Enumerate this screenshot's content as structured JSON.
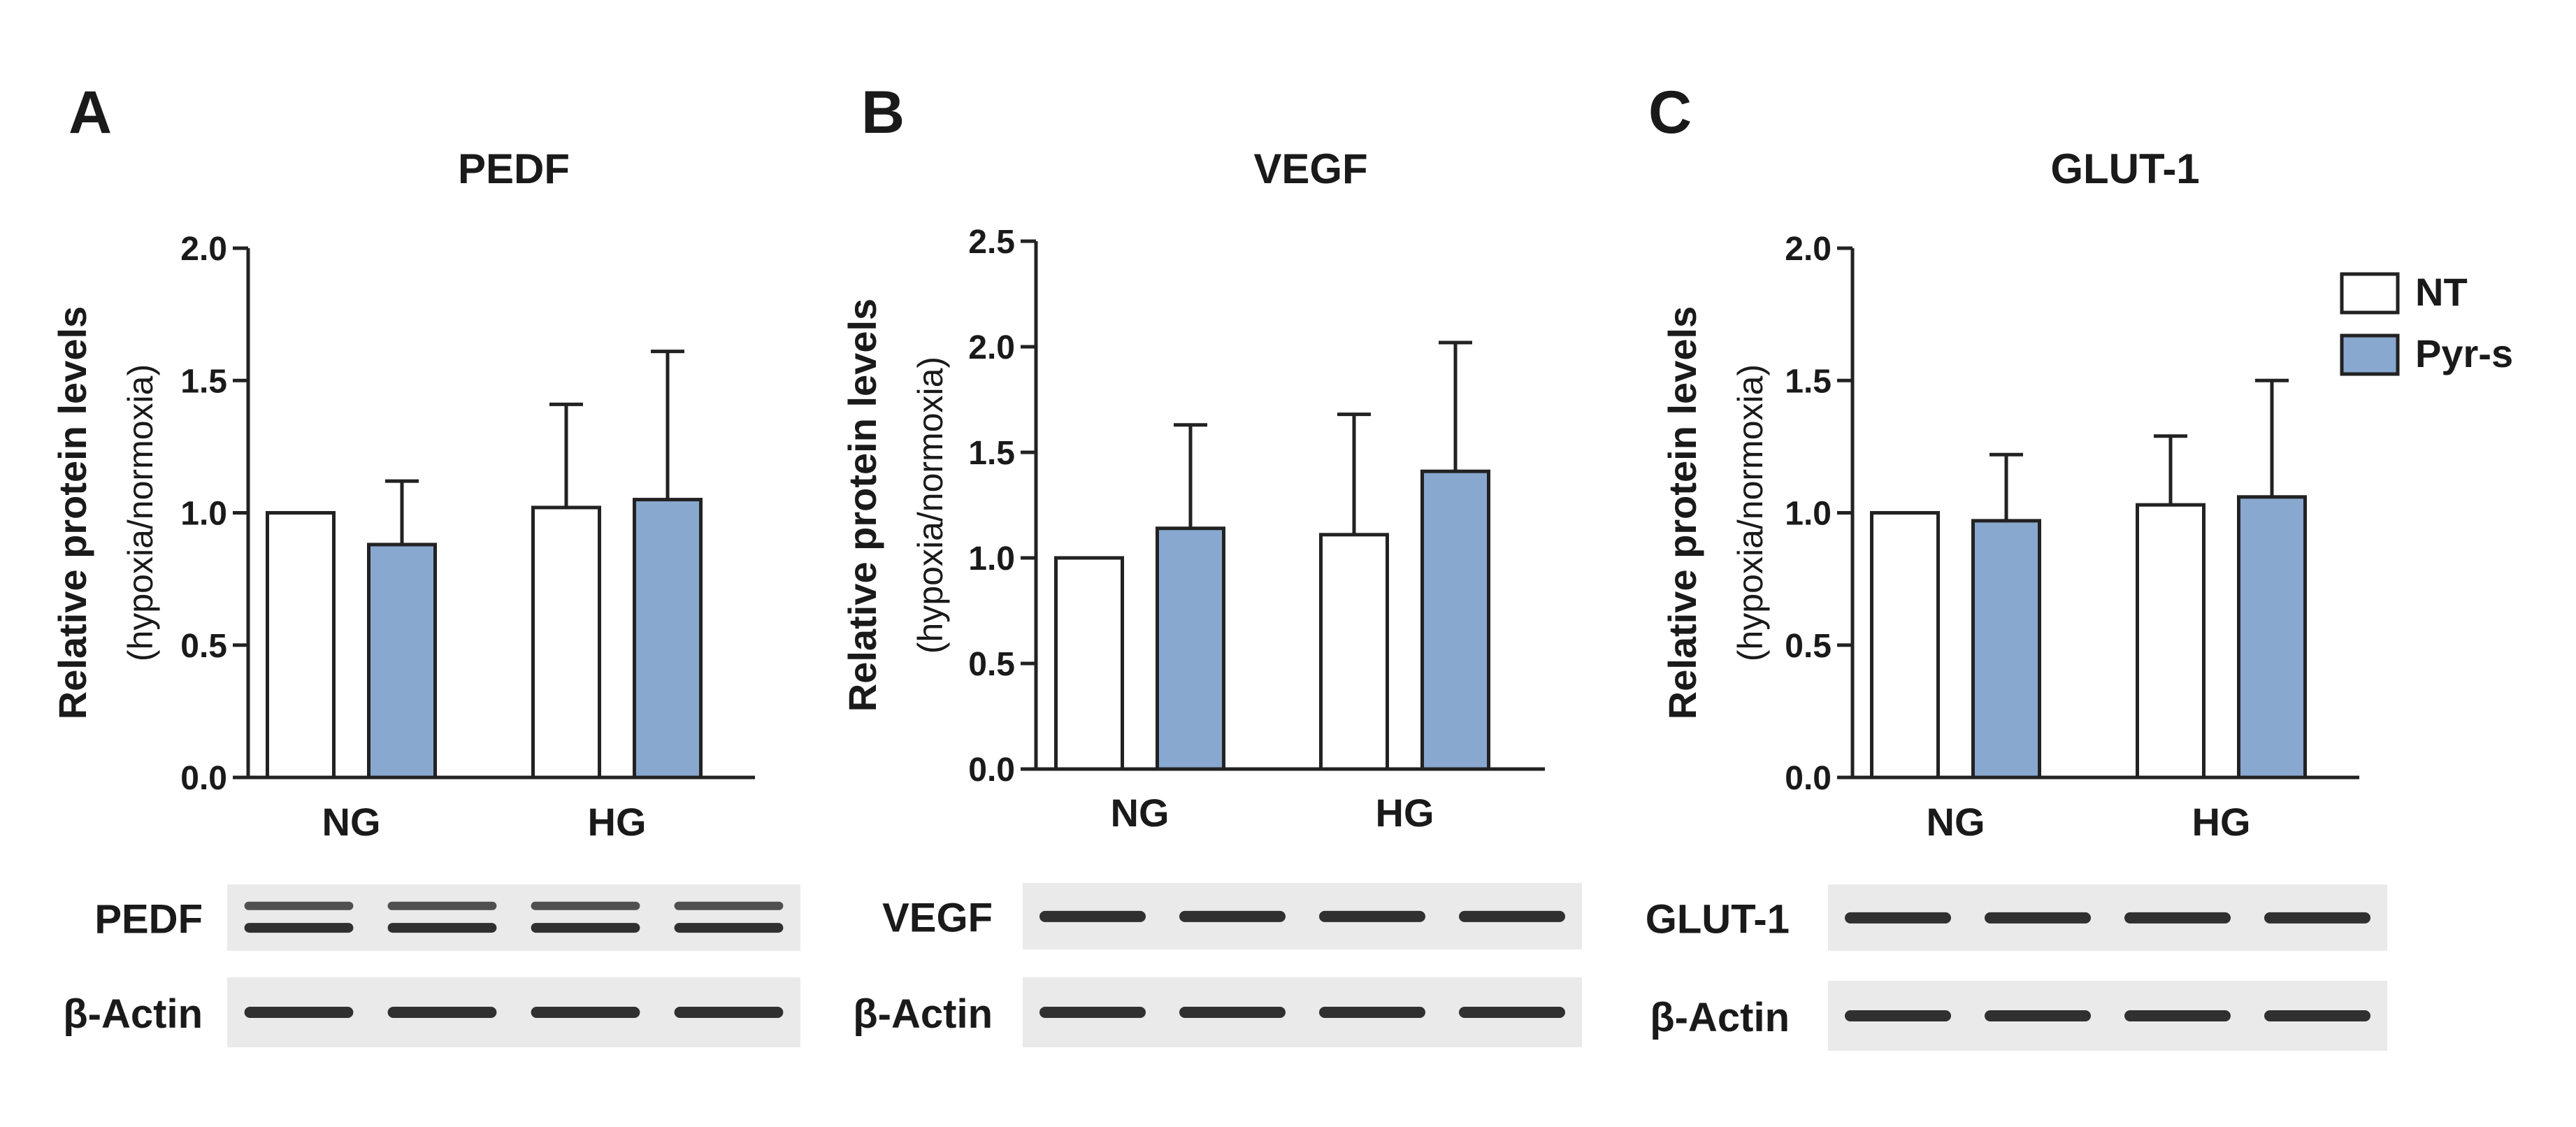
{
  "colors": {
    "nt_fill": "#ffffff",
    "pyr_fill": "#89a8d0",
    "bar_edge": "#222222",
    "blot_bg": "#eaeaea",
    "band": "#1c1c1c"
  },
  "legend": {
    "position": "top-right",
    "items": [
      {
        "label": "NT",
        "color": "#ffffff"
      },
      {
        "label": "Pyr-s",
        "color": "#89a8d0"
      }
    ]
  },
  "chart_data": [
    {
      "type": "bar",
      "panel": "A",
      "title": "PEDF",
      "ylabel": "Relative protein levels",
      "ylabel_sub": "(hypoxia/normoxia)",
      "categories": [
        "NG",
        "HG"
      ],
      "ylim": [
        0,
        2.0
      ],
      "yticks": [
        "0.0",
        "0.5",
        "1.0",
        "1.5",
        "2.0"
      ],
      "series": [
        {
          "name": "NT",
          "values": [
            1.0,
            1.02
          ],
          "errors": [
            0,
            0.39
          ]
        },
        {
          "name": "Pyr-s",
          "values": [
            0.88,
            1.05
          ],
          "errors": [
            0.24,
            0.56
          ]
        }
      ],
      "blots": [
        {
          "label": "PEDF",
          "bands": 2
        },
        {
          "label": "β-Actin",
          "bands": 1
        }
      ]
    },
    {
      "type": "bar",
      "panel": "B",
      "title": "VEGF",
      "ylabel": "Relative protein levels",
      "ylabel_sub": "(hypoxia/normoxia)",
      "categories": [
        "NG",
        "HG"
      ],
      "ylim": [
        0,
        2.5
      ],
      "yticks": [
        "0.0",
        "0.5",
        "1.0",
        "1.5",
        "2.0",
        "2.5"
      ],
      "series": [
        {
          "name": "NT",
          "values": [
            1.0,
            1.11
          ],
          "errors": [
            0,
            0.57
          ]
        },
        {
          "name": "Pyr-s",
          "values": [
            1.14,
            1.41
          ],
          "errors": [
            0.49,
            0.61
          ]
        }
      ],
      "blots": [
        {
          "label": "VEGF",
          "bands": 1
        },
        {
          "label": "β-Actin",
          "bands": 1
        }
      ]
    },
    {
      "type": "bar",
      "panel": "C",
      "title": "GLUT-1",
      "ylabel": "Relative protein levels",
      "ylabel_sub": "(hypoxia/normoxia)",
      "categories": [
        "NG",
        "HG"
      ],
      "ylim": [
        0,
        2.0
      ],
      "yticks": [
        "0.0",
        "0.5",
        "1.0",
        "1.5",
        "2.0"
      ],
      "series": [
        {
          "name": "NT",
          "values": [
            1.0,
            1.03
          ],
          "errors": [
            0,
            0.26
          ]
        },
        {
          "name": "Pyr-s",
          "values": [
            0.97,
            1.06
          ],
          "errors": [
            0.25,
            0.44
          ]
        }
      ],
      "blots": [
        {
          "label": "GLUT-1",
          "bands": 1
        },
        {
          "label": "β-Actin",
          "bands": 1
        }
      ]
    }
  ]
}
